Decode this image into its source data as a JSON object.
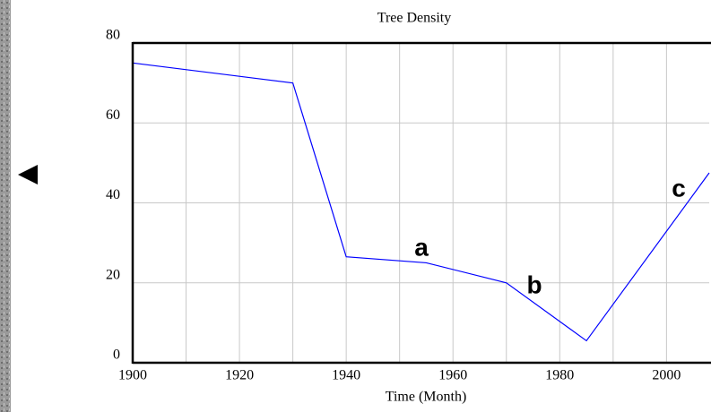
{
  "chart_data": {
    "type": "line",
    "title": "Tree Density",
    "xlabel": "Time (Month)",
    "x": [
      1900,
      1930,
      1940,
      1955,
      1970,
      1985,
      2008
    ],
    "series": [
      {
        "name": "Tree Density",
        "color": "#0000ff",
        "values": [
          75,
          70,
          26.5,
          25,
          20,
          5.5,
          47.5
        ]
      }
    ],
    "xlim": [
      1900,
      2008
    ],
    "xticks": [
      1900,
      1920,
      1940,
      1960,
      1980,
      2000
    ],
    "minor_xticks": [
      1910,
      1930,
      1950,
      1970,
      1990
    ],
    "ylim": [
      0,
      80
    ],
    "yticks": [
      0,
      20,
      40,
      60,
      80
    ],
    "grid": true,
    "annotations": [
      "a",
      "b",
      "c"
    ]
  }
}
